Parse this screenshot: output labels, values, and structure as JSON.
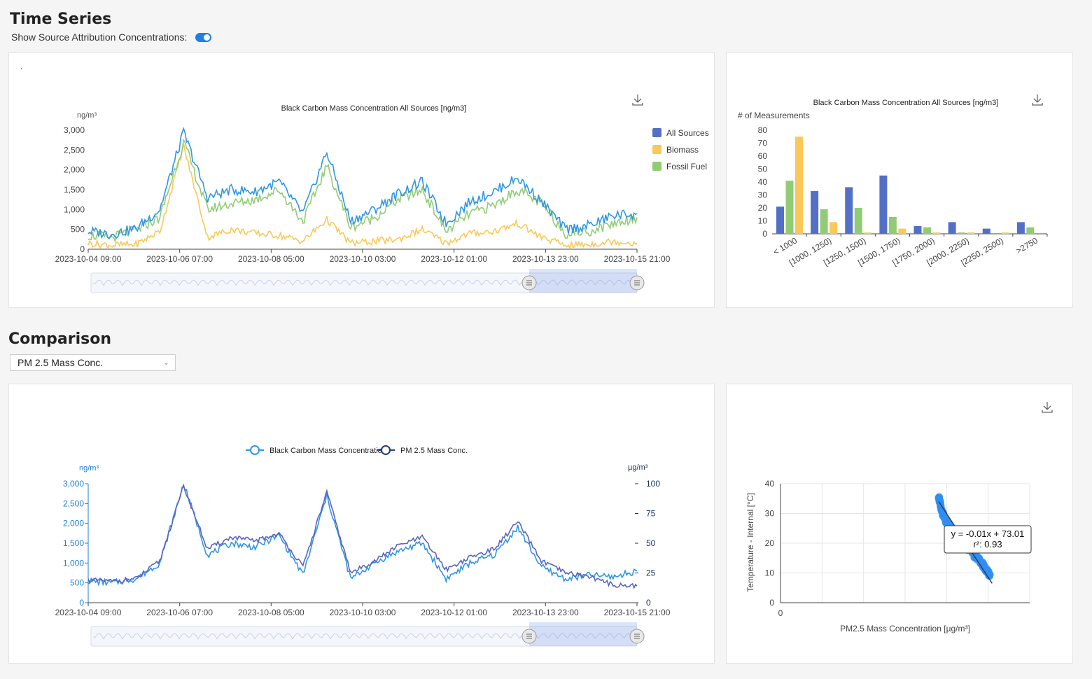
{
  "time_series": {
    "section_title": "Time Series",
    "toggle_label": "Show Source Attribution Concentrations:",
    "toggle_on": true,
    "panel_marker": "."
  },
  "comparison": {
    "section_title": "Comparison",
    "dropdown_value": "PM 2.5 Mass Conc."
  },
  "colors": {
    "all_sources": "#5470c6",
    "biomass": "#fac858",
    "fossil_fuel": "#91cc75",
    "bc_line": "#2f96e6",
    "pm_line": "#5b63c0",
    "scatter": "#2f8ef0"
  },
  "chart_data": [
    {
      "id": "ts-chart",
      "type": "line",
      "title": "Black Carbon Mass Concentration All Sources [ng/m3]",
      "ylabel": "ng/m³",
      "ylim": [
        0,
        3000
      ],
      "y_ticks": [
        "0",
        "500",
        "1,000",
        "1,500",
        "2,000",
        "2,500",
        "3,000"
      ],
      "x_ticks": [
        "2023-10-04 09:00",
        "2023-10-06 07:00",
        "2023-10-08 05:00",
        "2023-10-10 03:00",
        "2023-10-12 01:00",
        "2023-10-13 23:00",
        "2023-10-15 21:00"
      ],
      "legend_position": "right",
      "x": [
        "2023-10-04 09:00",
        "2023-10-04 21:00",
        "2023-10-05 09:00",
        "2023-10-05 21:00",
        "2023-10-06 09:00",
        "2023-10-06 21:00",
        "2023-10-07 09:00",
        "2023-10-07 21:00",
        "2023-10-08 09:00",
        "2023-10-08 21:00",
        "2023-10-09 09:00",
        "2023-10-09 21:00",
        "2023-10-10 09:00",
        "2023-10-10 21:00",
        "2023-10-11 09:00",
        "2023-10-11 21:00",
        "2023-10-12 09:00",
        "2023-10-12 21:00",
        "2023-10-13 09:00",
        "2023-10-13 21:00",
        "2023-10-14 09:00",
        "2023-10-14 21:00",
        "2023-10-15 09:00",
        "2023-10-15 21:00"
      ],
      "series": [
        {
          "name": "All Sources",
          "values": [
            450,
            380,
            520,
            1000,
            2950,
            1300,
            1500,
            1450,
            1700,
            900,
            2450,
            700,
            1000,
            1400,
            1700,
            650,
            1200,
            1450,
            1800,
            1200,
            500,
            600,
            850,
            900
          ]
        },
        {
          "name": "Biomass",
          "values": [
            150,
            100,
            120,
            450,
            2600,
            300,
            500,
            400,
            350,
            200,
            750,
            150,
            200,
            250,
            500,
            150,
            400,
            450,
            650,
            300,
            100,
            120,
            200,
            150
          ]
        },
        {
          "name": "Fossil Fuel",
          "values": [
            350,
            300,
            480,
            800,
            2700,
            1000,
            1150,
            1250,
            1500,
            700,
            2100,
            550,
            800,
            1250,
            1500,
            450,
            900,
            1100,
            1500,
            1150,
            400,
            450,
            650,
            800
          ]
        }
      ]
    },
    {
      "id": "hist-chart",
      "type": "bar",
      "title": "Black Carbon Mass Concentration All Sources [ng/m3]",
      "ylabel": "# of Measurements",
      "ylim": [
        0,
        80
      ],
      "y_ticks": [
        "0",
        "10",
        "20",
        "30",
        "40",
        "50",
        "60",
        "70",
        "80"
      ],
      "categories": [
        "< 1000",
        "[1000, 1250)",
        "[1250, 1500)",
        "[1500, 1750)",
        "[1750, 2000)",
        "[2000, 2250)",
        "[2250, 2500)",
        ">2750"
      ],
      "series": [
        {
          "name": "All Sources",
          "values": [
            21,
            33,
            36,
            45,
            6,
            9,
            4,
            9
          ]
        },
        {
          "name": "Fossil Fuel",
          "values": [
            41,
            19,
            20,
            13,
            5,
            1,
            0,
            5
          ]
        },
        {
          "name": "Biomass",
          "values": [
            75,
            9,
            1,
            4,
            1,
            1,
            1,
            0
          ]
        }
      ]
    },
    {
      "id": "cmp-chart",
      "type": "line",
      "legend": [
        "Black Carbon Mass Concentration",
        "PM 2.5 Mass Conc."
      ],
      "ylabel_left": "ng/m³",
      "ylabel_right": "µg/m³",
      "ylim_left": [
        0,
        3000
      ],
      "ylim_right": [
        0,
        100
      ],
      "y_ticks_left": [
        "0",
        "500",
        "1,000",
        "1,500",
        "2,000",
        "2,500",
        "3,000"
      ],
      "y_ticks_right": [
        "0",
        "25",
        "50",
        "75",
        "100"
      ],
      "x_ticks": [
        "2023-10-04 09:00",
        "2023-10-06 07:00",
        "2023-10-08 05:00",
        "2023-10-10 03:00",
        "2023-10-12 01:00",
        "2023-10-13 23:00",
        "2023-10-15 21:00"
      ],
      "x": [
        "2023-10-04 09:00",
        "2023-10-04 21:00",
        "2023-10-05 09:00",
        "2023-10-05 21:00",
        "2023-10-06 09:00",
        "2023-10-06 21:00",
        "2023-10-07 09:00",
        "2023-10-07 21:00",
        "2023-10-08 09:00",
        "2023-10-08 21:00",
        "2023-10-09 09:00",
        "2023-10-09 21:00",
        "2023-10-10 09:00",
        "2023-10-10 21:00",
        "2023-10-11 09:00",
        "2023-10-11 21:00",
        "2023-10-12 09:00",
        "2023-10-12 21:00",
        "2023-10-13 09:00",
        "2023-10-13 21:00",
        "2023-10-14 09:00",
        "2023-10-14 21:00",
        "2023-10-15 09:00",
        "2023-10-15 21:00"
      ],
      "series": [
        {
          "name": "Black Carbon Mass Concentration",
          "values": [
            550,
            500,
            600,
            1000,
            3000,
            1200,
            1500,
            1400,
            1700,
            700,
            2700,
            600,
            1000,
            1300,
            1500,
            600,
            1000,
            1200,
            1900,
            900,
            600,
            700,
            650,
            800
          ]
        },
        {
          "name": "PM 2.5 Mass Conc.",
          "values": [
            19,
            18,
            20,
            35,
            98,
            45,
            55,
            52,
            58,
            30,
            93,
            25,
            35,
            48,
            55,
            28,
            38,
            45,
            68,
            35,
            25,
            22,
            15,
            14
          ]
        }
      ]
    },
    {
      "id": "scatter-chart",
      "type": "scatter",
      "xlabel": "PM2.5 Mass Concentration [µg/m³]",
      "ylabel": "Temperature - Internal [°C]",
      "ylim": [
        0,
        40
      ],
      "y_ticks": [
        "0",
        "10",
        "20",
        "30",
        "40"
      ],
      "x_ticks": [
        "0"
      ],
      "fit_label": "y = -0.01x + 73.01",
      "r2_label": "r²: 0.93",
      "points_desc": "dense curve decreasing",
      "x": [
        4000,
        4050,
        4150,
        4300,
        4500,
        4700,
        4900,
        5100,
        5200,
        5300
      ],
      "y": [
        36,
        32,
        28,
        25,
        22,
        19,
        16,
        13,
        11,
        9
      ]
    }
  ]
}
